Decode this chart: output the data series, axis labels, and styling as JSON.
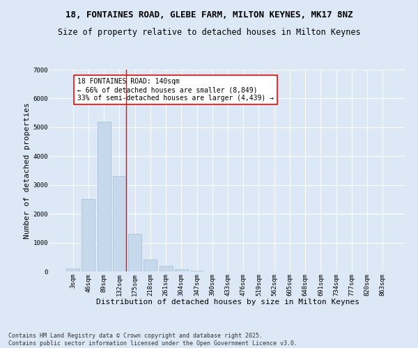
{
  "title_line1": "18, FONTAINES ROAD, GLEBE FARM, MILTON KEYNES, MK17 8NZ",
  "title_line2": "Size of property relative to detached houses in Milton Keynes",
  "xlabel": "Distribution of detached houses by size in Milton Keynes",
  "ylabel": "Number of detached properties",
  "categories": [
    "3sqm",
    "46sqm",
    "89sqm",
    "132sqm",
    "175sqm",
    "218sqm",
    "261sqm",
    "304sqm",
    "347sqm",
    "390sqm",
    "433sqm",
    "476sqm",
    "519sqm",
    "562sqm",
    "605sqm",
    "648sqm",
    "691sqm",
    "734sqm",
    "777sqm",
    "820sqm",
    "863sqm"
  ],
  "values": [
    100,
    2500,
    5200,
    3300,
    1300,
    400,
    200,
    80,
    30,
    10,
    5,
    3,
    2,
    1,
    1,
    0,
    0,
    0,
    0,
    0,
    0
  ],
  "bar_color": "#c6d9ec",
  "bar_edgecolor": "#a0bcd4",
  "vline_index": 3,
  "vline_color": "red",
  "annotation_text": "18 FONTAINES ROAD: 140sqm\n← 66% of detached houses are smaller (8,849)\n33% of semi-detached houses are larger (4,439) →",
  "annotation_box_facecolor": "white",
  "annotation_box_edgecolor": "red",
  "ylim": [
    0,
    7000
  ],
  "yticks": [
    0,
    1000,
    2000,
    3000,
    4000,
    5000,
    6000,
    7000
  ],
  "footer_line1": "Contains HM Land Registry data © Crown copyright and database right 2025.",
  "footer_line2": "Contains public sector information licensed under the Open Government Licence v3.0.",
  "bg_color": "#dce8f5",
  "title_fontsize": 9,
  "subtitle_fontsize": 8.5,
  "axis_label_fontsize": 8,
  "tick_fontsize": 6.5,
  "annotation_fontsize": 7,
  "footer_fontsize": 6
}
